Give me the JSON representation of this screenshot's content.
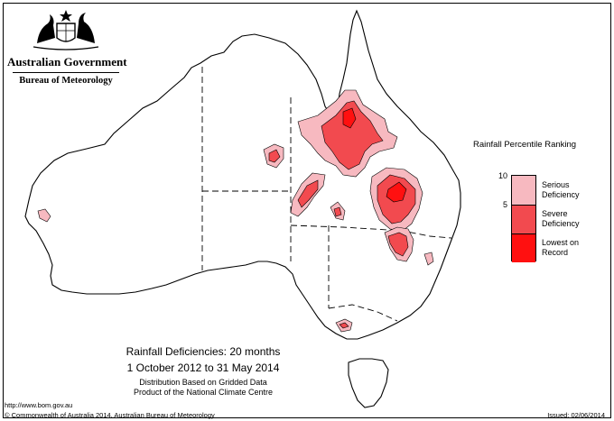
{
  "header": {
    "government": "Australian Government",
    "bureau": "Bureau of Meteorology"
  },
  "legend": {
    "title": "Rainfall Percentile Ranking",
    "ticks": [
      "10",
      "5"
    ],
    "categories": [
      {
        "label": "Serious Deficiency",
        "color": "#f7b9c0"
      },
      {
        "label": "Severe Deficiency",
        "color": "#f24a4f"
      },
      {
        "label": "Lowest on Record",
        "color": "#ff1010"
      }
    ]
  },
  "caption": {
    "title": "Rainfall Deficiencies: 20 months",
    "dates": "1 October 2012 to 31 May 2014",
    "note_line1": "Distribution Based on Gridded Data",
    "note_line2": "Product of the National Climate Centre"
  },
  "footer": {
    "url": "http://www.bom.gov.au",
    "copyright": "© Commonwealth of Australia 2014, Australian Bureau of Meteorology",
    "issued": "Issued: 02/06/2014"
  },
  "colors": {
    "serious": "#f7b9c0",
    "severe": "#f24a4f",
    "lowest": "#ff1010",
    "outline": "#000000"
  }
}
